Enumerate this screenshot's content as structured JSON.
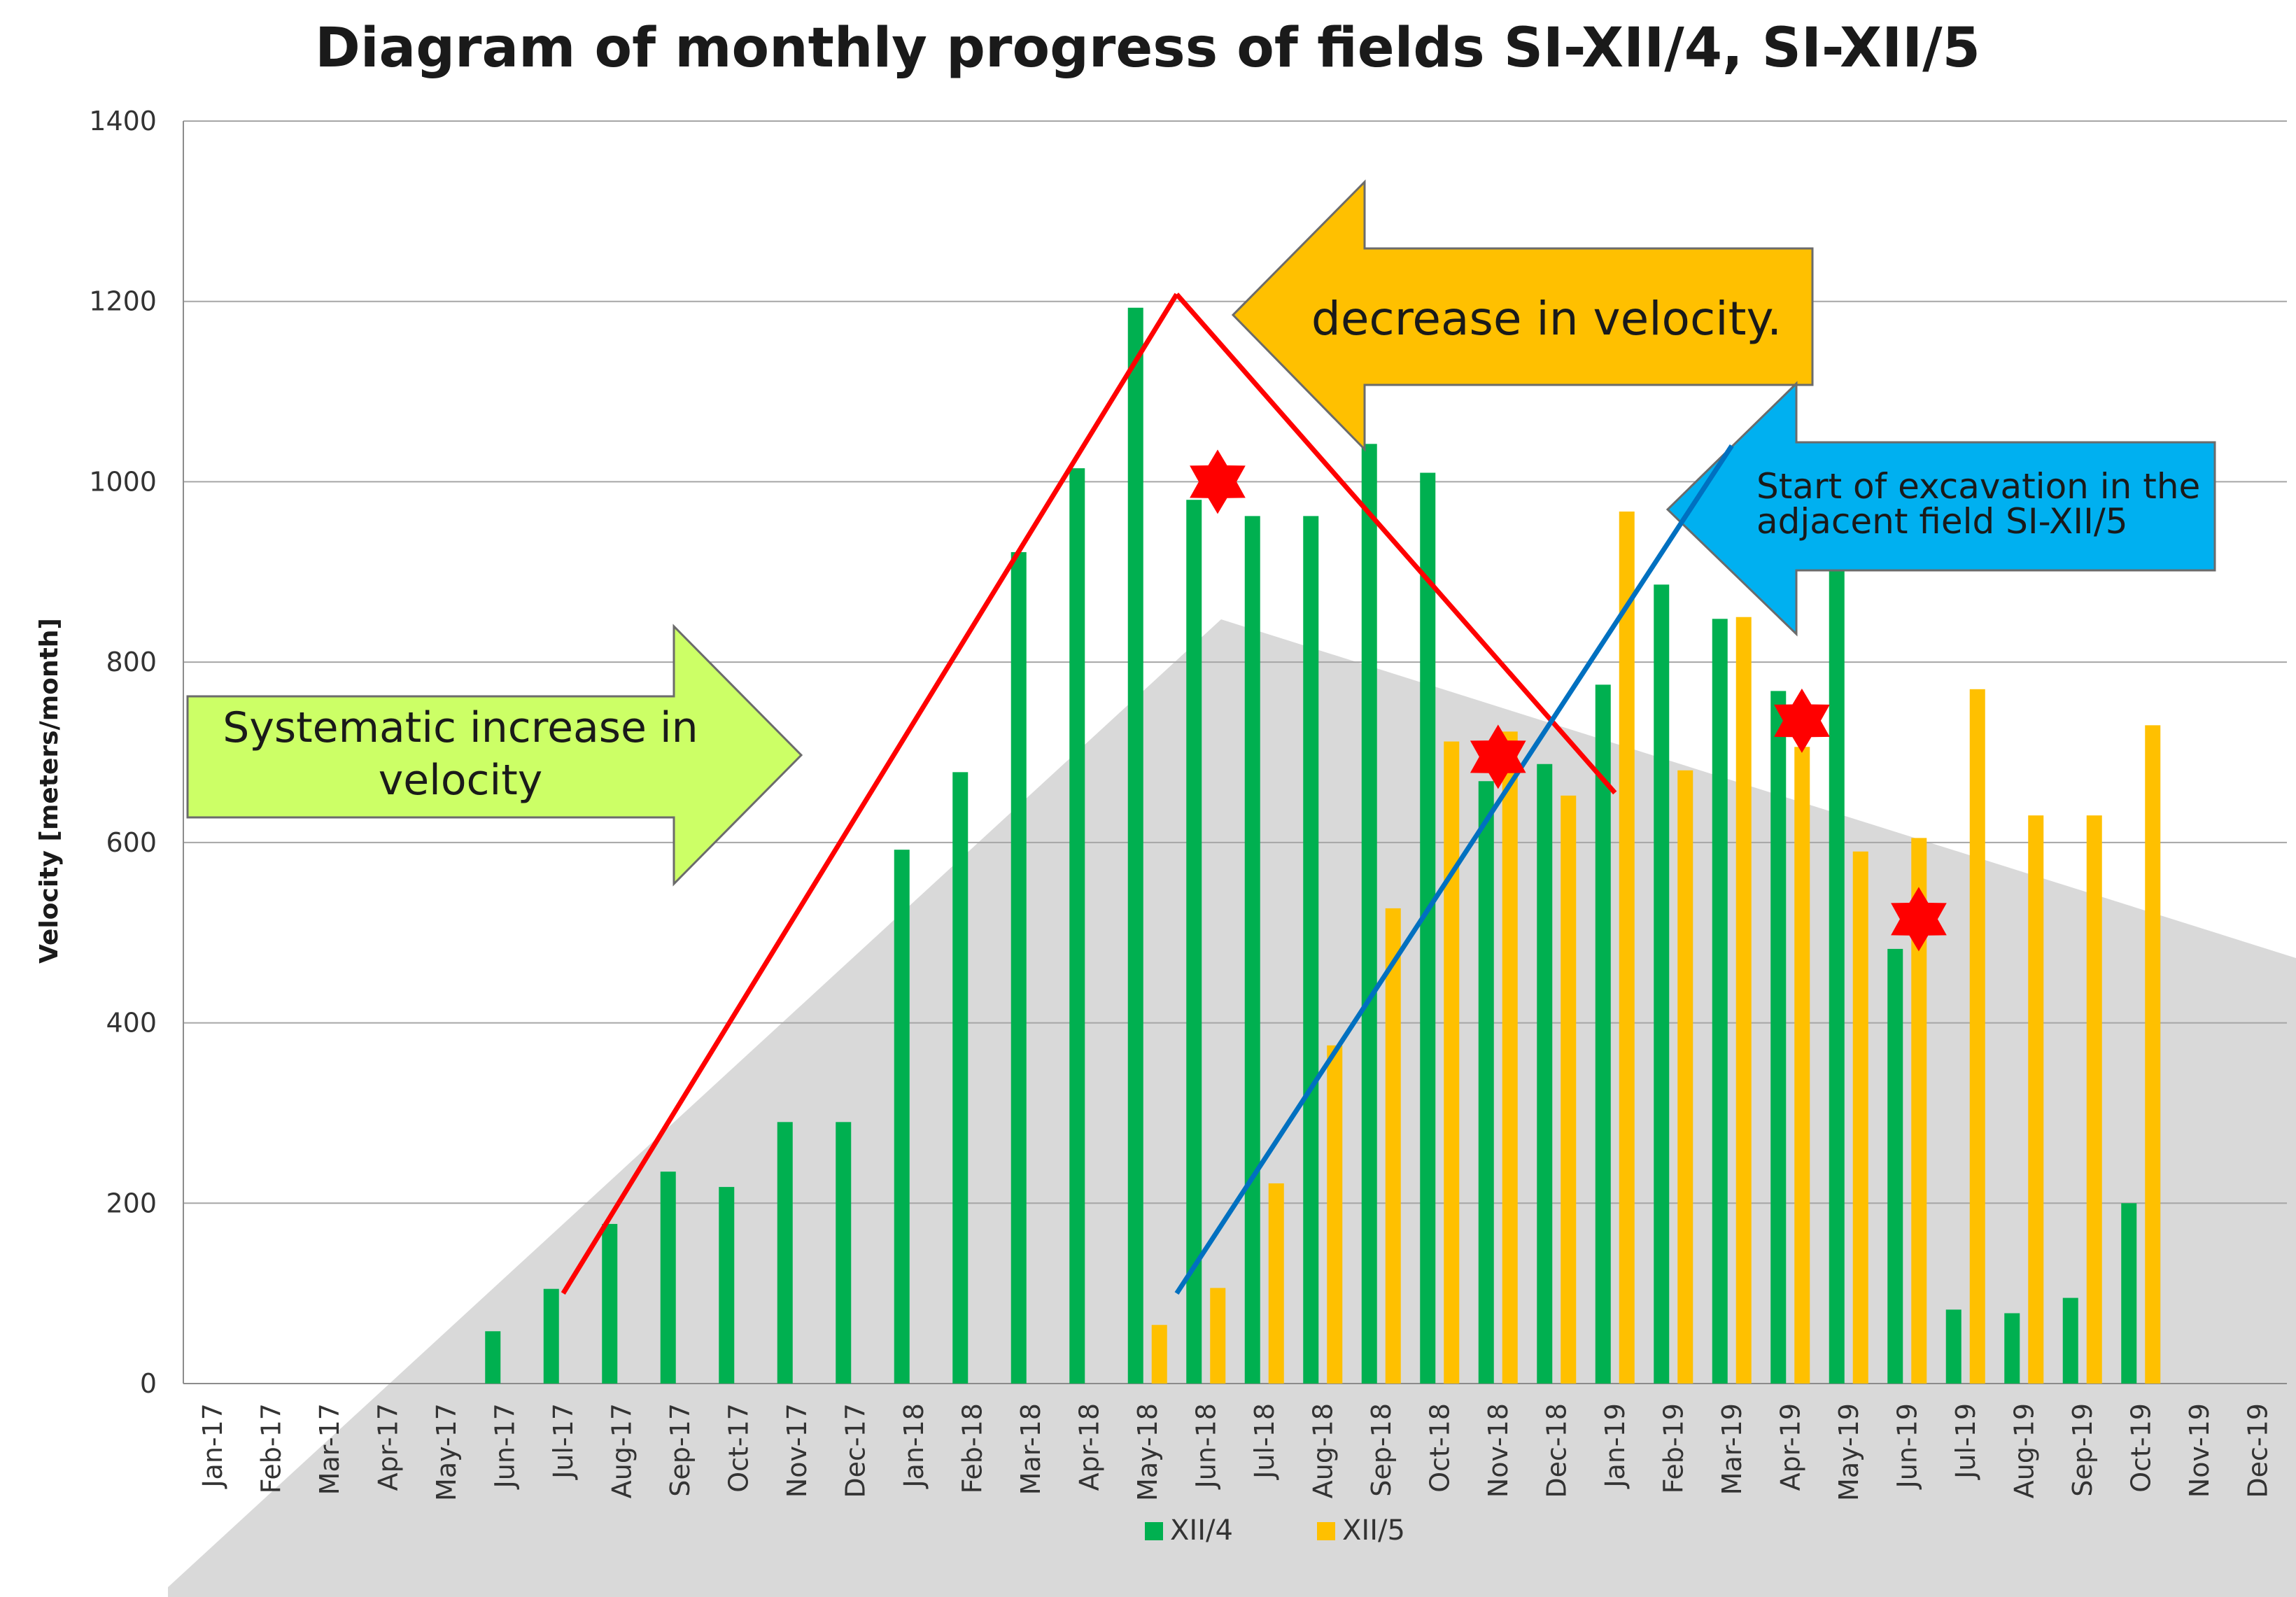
{
  "chart_data": {
    "type": "bar",
    "title": "Diagram of monthly  progress  of fields  SI-XII/4, SI-XII/5",
    "xlabel": "",
    "ylabel": "Velocity [meters/month]",
    "ylim": [
      0,
      1400
    ],
    "yticks": [
      "0",
      "200",
      "400",
      "600",
      "800",
      "1000",
      "1200",
      "1400"
    ],
    "grid": true,
    "legend_position": "bottom",
    "categories": [
      "Jan-17",
      "Feb-17",
      "Mar-17",
      "Apr-17",
      "May-17",
      "Jun-17",
      "Jul-17",
      "Aug-17",
      "Sep-17",
      "Oct-17",
      "Nov-17",
      "Dec-17",
      "Jan-18",
      "Feb-18",
      "Mar-18",
      "Apr-18",
      "May-18",
      "Jun-18",
      "Jul-18",
      "Aug-18",
      "Sep-18",
      "Oct-18",
      "Nov-18",
      "Dec-18",
      "Jan-19",
      "Feb-19",
      "Mar-19",
      "Apr-19",
      "May-19",
      "Jun-19",
      "Jul-19",
      "Aug-19",
      "Sep-19",
      "Oct-19",
      "Nov-19",
      "Dec-19"
    ],
    "series": [
      {
        "name": "XII/4",
        "color": "#00b050",
        "values": [
          0,
          0,
          0,
          0,
          0,
          58,
          105,
          177,
          235,
          218,
          290,
          290,
          592,
          678,
          922,
          1015,
          1193,
          980,
          962,
          962,
          1042,
          1010,
          668,
          687,
          775,
          886,
          848,
          768,
          905,
          482,
          82,
          78,
          95,
          200,
          0,
          0
        ]
      },
      {
        "name": "XII/5",
        "color": "#ffc000",
        "values": [
          0,
          0,
          0,
          0,
          0,
          0,
          0,
          0,
          0,
          0,
          0,
          0,
          0,
          0,
          0,
          0,
          65,
          106,
          222,
          375,
          527,
          712,
          723,
          652,
          967,
          680,
          850,
          706,
          590,
          605,
          770,
          630,
          630,
          730,
          0,
          0
        ]
      }
    ],
    "annotations": {
      "increase_label": [
        "Systematic increase in",
        "velocity"
      ],
      "decrease_label": "decrease in velocity.",
      "excavation_label": [
        "Start of excavation in the",
        "adjacent field SI-XII/5"
      ]
    },
    "trend_lines": [
      {
        "name": "increase",
        "color": "#ff0000",
        "from": {
          "x": 6,
          "y": 100
        },
        "to": {
          "x": 16.5,
          "y": 1208
        }
      },
      {
        "name": "decrease",
        "color": "#ff0000",
        "from": {
          "x": 16.5,
          "y": 1208
        },
        "to": {
          "x": 24,
          "y": 655
        }
      },
      {
        "name": "excavation",
        "color": "#0070c0",
        "from": {
          "x": 16.5,
          "y": 100
        },
        "to": {
          "x": 26,
          "y": 1040
        }
      }
    ],
    "markers": [
      {
        "x": 17.2,
        "y": 1000
      },
      {
        "x": 22.0,
        "y": 695
      },
      {
        "x": 27.2,
        "y": 735
      },
      {
        "x": 29.2,
        "y": 515
      }
    ],
    "colors": {
      "green_arrow": "#ccff66",
      "orange_arrow": "#ffc000",
      "blue_arrow": "#00b0f0",
      "marker": "#ff0000",
      "background_triangle": "#d9d9d9"
    }
  }
}
